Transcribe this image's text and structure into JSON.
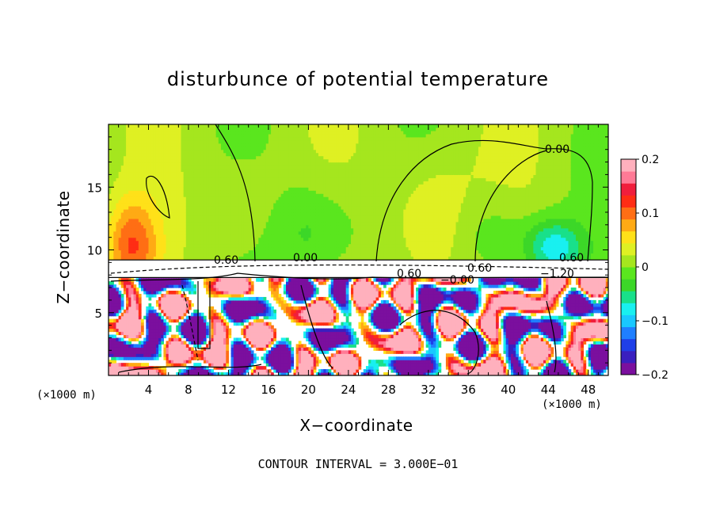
{
  "chart_data": {
    "type": "heatmap",
    "title": "disturbunce of potential temperature",
    "xlabel": "X−coordinate",
    "ylabel": "Z−coordinate",
    "x_unit_left": "(×1000 m)",
    "x_unit_right": "(×1000 m)",
    "xlim": [
      0,
      50
    ],
    "ylim": [
      0,
      20
    ],
    "x_ticks": [
      4,
      8,
      12,
      16,
      20,
      24,
      28,
      32,
      36,
      40,
      44,
      48
    ],
    "y_ticks": [
      5,
      10,
      15
    ],
    "colorbar": {
      "range": [
        -0.2,
        0.2
      ],
      "tick_labels": [
        "0.2",
        "0.1",
        "0",
        "−0.1",
        "−0.2"
      ],
      "tick_values": [
        0.2,
        0.1,
        0,
        -0.1,
        -0.2
      ],
      "colors": [
        "#7b0f9e",
        "#3a1fbf",
        "#1f3fe8",
        "#1f7fff",
        "#19c8ff",
        "#19f0f0",
        "#19e08a",
        "#3cd728",
        "#5ae61e",
        "#a5e61e",
        "#dff023",
        "#ffe119",
        "#ffaa14",
        "#ff6e14",
        "#ff2d14",
        "#f01e3c",
        "#ff7a96",
        "#ffb0bd"
      ]
    },
    "contour_labels": [
      "0.00",
      "0.00",
      "0.60",
      "0.60",
      "0.60",
      "−0.00",
      "−1.20",
      "0.60"
    ],
    "contour_interval_text": "CONTOUR INTERVAL =  3.000E−01"
  }
}
